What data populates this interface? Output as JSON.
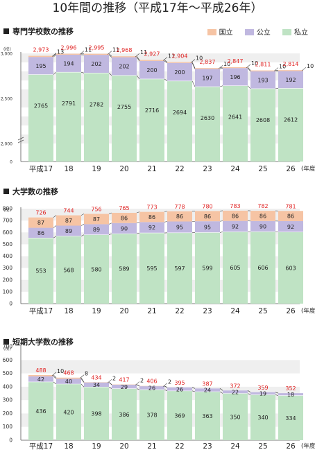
{
  "page_title": "10年間の推移（平成17年〜平成26年）",
  "legend": [
    {
      "label": "国立",
      "color": "#f6c4a4"
    },
    {
      "label": "公立",
      "color": "#c0b8e0"
    },
    {
      "label": "私立",
      "color": "#bfe3c4"
    }
  ],
  "colors": {
    "total_label": "#e02020",
    "band": "#efefef",
    "axis": "#555555"
  },
  "chart_data": [
    {
      "type": "bar",
      "title": "専門学校数の推移",
      "unit_label": "(校)",
      "stacked": true,
      "x_suffix": "(年度)",
      "categories": [
        "平成17",
        "18",
        "19",
        "20",
        "21",
        "22",
        "23",
        "24",
        "25",
        "26"
      ],
      "ylim": [
        0,
        3000
      ],
      "axis_break": true,
      "yticks": [
        0,
        2000,
        2500,
        3000
      ],
      "series": [
        {
          "name": "私立",
          "values": [
            2765,
            2791,
            2782,
            2755,
            2716,
            2694,
            2630,
            2641,
            2608,
            2612
          ]
        },
        {
          "name": "公立",
          "values": [
            195,
            194,
            202,
            202,
            200,
            200,
            197,
            196,
            193,
            192
          ]
        },
        {
          "name": "国立",
          "values": [
            13,
            11,
            11,
            11,
            11,
            10,
            10,
            10,
            10,
            10
          ]
        }
      ],
      "totals": [
        2973,
        2996,
        2995,
        2968,
        2927,
        2904,
        2837,
        2847,
        2811,
        2814
      ]
    },
    {
      "type": "bar",
      "title": "大学数の推移",
      "unit_label": "(校)",
      "stacked": true,
      "x_suffix": "(年度)",
      "categories": [
        "平成17",
        "18",
        "19",
        "20",
        "21",
        "22",
        "23",
        "24",
        "25",
        "26"
      ],
      "ylim": [
        0,
        800
      ],
      "yticks": [
        0,
        100,
        200,
        300,
        400,
        500,
        600,
        700,
        800
      ],
      "series": [
        {
          "name": "私立",
          "values": [
            553,
            568,
            580,
            589,
            595,
            597,
            599,
            605,
            606,
            603
          ]
        },
        {
          "name": "公立",
          "values": [
            86,
            89,
            89,
            90,
            92,
            95,
            95,
            92,
            90,
            92
          ]
        },
        {
          "name": "国立",
          "values": [
            87,
            87,
            87,
            86,
            86,
            86,
            86,
            86,
            86,
            86
          ]
        }
      ],
      "totals": [
        726,
        744,
        756,
        765,
        773,
        778,
        780,
        783,
        782,
        781
      ]
    },
    {
      "type": "bar",
      "title": "短期大学数の推移",
      "unit_label": "(校)",
      "stacked": true,
      "x_suffix": "(年度)",
      "categories": [
        "平成17",
        "18",
        "19",
        "20",
        "21",
        "22",
        "23",
        "24",
        "25",
        "26"
      ],
      "ylim": [
        0,
        700
      ],
      "yticks": [
        0,
        100,
        200,
        300,
        400,
        500,
        600,
        700
      ],
      "series": [
        {
          "name": "私立",
          "values": [
            436,
            420,
            398,
            386,
            378,
            369,
            363,
            350,
            340,
            334
          ]
        },
        {
          "name": "公立",
          "values": [
            42,
            40,
            34,
            29,
            26,
            26,
            24,
            22,
            19,
            18
          ]
        },
        {
          "name": "国立",
          "values": [
            10,
            8,
            2,
            2,
            2,
            0,
            0,
            0,
            0,
            0
          ]
        }
      ],
      "totals": [
        488,
        468,
        434,
        417,
        406,
        395,
        387,
        372,
        359,
        352
      ]
    }
  ]
}
